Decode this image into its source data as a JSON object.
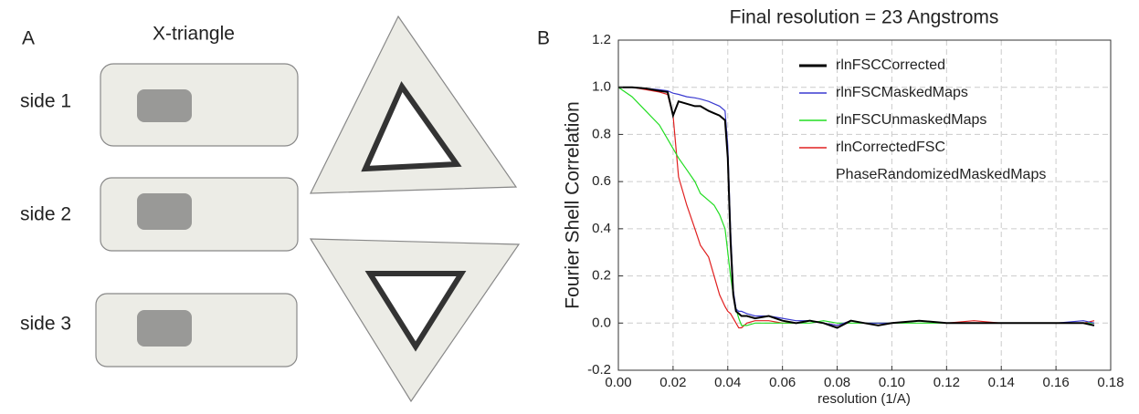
{
  "panel_a": {
    "label": "A",
    "title": "X-triangle",
    "rows": [
      "side 1",
      "side 2",
      "side 3"
    ]
  },
  "panel_b_label": "B",
  "chart_data": {
    "type": "line",
    "title": "Final resolution = 23 Angstroms",
    "x_label": "resolution (1/A)",
    "y_label": "Fourier Shell Correlation",
    "x": [
      0,
      0.005,
      0.01,
      0.015,
      0.018,
      0.02,
      0.022,
      0.025,
      0.028,
      0.03,
      0.033,
      0.035,
      0.037,
      0.039,
      0.04,
      0.041,
      0.042,
      0.043,
      0.044,
      0.045,
      0.047,
      0.05,
      0.055,
      0.06,
      0.065,
      0.07,
      0.075,
      0.08,
      0.085,
      0.09,
      0.095,
      0.1,
      0.11,
      0.12,
      0.13,
      0.14,
      0.15,
      0.16,
      0.17,
      0.174
    ],
    "series": [
      {
        "name": "rlnFSCCorrected",
        "color": "#000000",
        "values": [
          1,
          1,
          0.995,
          0.985,
          0.98,
          0.88,
          0.94,
          0.93,
          0.92,
          0.92,
          0.9,
          0.89,
          0.88,
          0.86,
          0.7,
          0.35,
          0.12,
          0.05,
          0.04,
          0.03,
          0.03,
          0.02,
          0.03,
          0.01,
          0,
          0.01,
          0,
          -0.02,
          0.01,
          0,
          -0.01,
          0,
          0.01,
          0,
          0,
          0,
          0,
          0,
          0,
          -0.01
        ]
      },
      {
        "name": "rlnFSCMaskedMaps",
        "color": "#3a3ad0",
        "values": [
          1,
          1,
          0.995,
          0.99,
          0.985,
          0.975,
          0.97,
          0.96,
          0.955,
          0.95,
          0.94,
          0.93,
          0.92,
          0.9,
          0.75,
          0.4,
          0.14,
          0.06,
          0.05,
          0.05,
          0.04,
          0.03,
          0.03,
          0.02,
          0.01,
          0.01,
          0,
          -0.01,
          0.01,
          0,
          0,
          0,
          0.01,
          0,
          0,
          0,
          0,
          0,
          0.01,
          0
        ]
      },
      {
        "name": "rlnFSCUnmaskedMaps",
        "color": "#22dd22",
        "values": [
          1,
          0.96,
          0.9,
          0.84,
          0.78,
          0.74,
          0.7,
          0.65,
          0.6,
          0.55,
          0.52,
          0.5,
          0.46,
          0.4,
          0.3,
          0.2,
          0.12,
          0.06,
          0.02,
          -0.01,
          -0.01,
          0,
          0,
          0,
          0,
          0,
          0.01,
          0,
          0,
          0,
          0,
          0,
          0,
          0,
          0,
          0,
          0,
          0,
          0,
          0
        ]
      },
      {
        "name": "rlnCorrectedFSC PhaseRandomizedMaskedMaps",
        "color": "#e02020",
        "values": [
          1,
          1,
          0.99,
          0.98,
          0.97,
          0.88,
          0.62,
          0.5,
          0.4,
          0.33,
          0.28,
          0.2,
          0.12,
          0.07,
          0.05,
          0.04,
          0.02,
          0,
          -0.02,
          -0.02,
          0,
          0.01,
          0.01,
          0,
          0,
          0.01,
          0,
          -0.01,
          0.01,
          0,
          0,
          0,
          0.01,
          0,
          0.01,
          0,
          0,
          0,
          0,
          0.01
        ]
      }
    ],
    "xlim": [
      0,
      0.18
    ],
    "xticks": [
      {
        "value": 0,
        "label": "0.00"
      },
      {
        "value": 0.02,
        "label": "0.02"
      },
      {
        "value": 0.04,
        "label": "0.04"
      },
      {
        "value": 0.06,
        "label": "0.06"
      },
      {
        "value": 0.08,
        "label": "0.08"
      },
      {
        "value": 0.1,
        "label": "0.10"
      },
      {
        "value": 0.12,
        "label": "0.12"
      },
      {
        "value": 0.14,
        "label": "0.14"
      },
      {
        "value": 0.16,
        "label": "0.16"
      },
      {
        "value": 0.18,
        "label": "0.18"
      }
    ],
    "ylim": [
      -0.2,
      1.2
    ],
    "yticks": [
      -0.2,
      {
        "value": 0,
        "label": "0.0"
      },
      0.2,
      0.4,
      0.6,
      0.8,
      {
        "value": 1,
        "label": "1.0"
      },
      1.2
    ],
    "grid": true
  }
}
